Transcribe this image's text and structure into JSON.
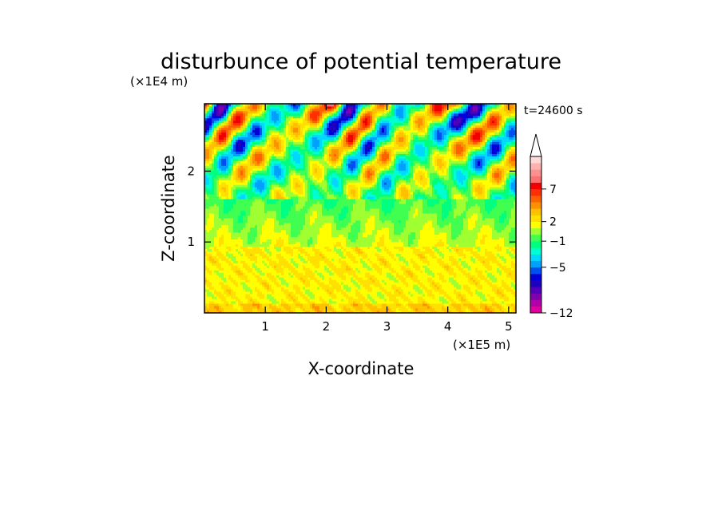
{
  "chart_data": {
    "type": "heatmap",
    "title": "disturbunce of potential temperature",
    "time_label": "t=24600 s",
    "xlabel": "X-coordinate",
    "ylabel": "Z-coordinate",
    "x_scale_label": "(×1E5 m)",
    "y_scale_label": "(×1E4 m)",
    "xlim": [
      0,
      5.12
    ],
    "ylim": [
      0,
      2.95
    ],
    "xticks": [
      1,
      2,
      3,
      4,
      5
    ],
    "yticks": [
      1,
      2
    ],
    "colorbar": {
      "levels": [
        -12,
        -11,
        -10,
        -9,
        -8,
        -7,
        -6,
        -5,
        -4,
        -3,
        -2,
        -1,
        0,
        1,
        2,
        3,
        4,
        5,
        6,
        7,
        8,
        9,
        10,
        11
      ],
      "labeled_ticks": [
        {
          "level": -12,
          "text": "−12"
        },
        {
          "level": -5,
          "text": "−5"
        },
        {
          "level": -1,
          "text": "−1"
        },
        {
          "level": 2,
          "text": "2"
        },
        {
          "level": 7,
          "text": "7"
        }
      ],
      "extend": "max",
      "colors": [
        "#e000a0",
        "#b000a8",
        "#8000b0",
        "#5000b8",
        "#2000c0",
        "#0000d8",
        "#0050f0",
        "#00a0ff",
        "#00d8ff",
        "#00ffd0",
        "#00ff80",
        "#40ff50",
        "#a0ff30",
        "#ffff00",
        "#ffe000",
        "#ffc000",
        "#ff9000",
        "#ff6000",
        "#ff3000",
        "#f00000",
        "#ff7070",
        "#ff9090",
        "#ffb0b0",
        "#ffd8d8"
      ]
    },
    "field_bands": [
      {
        "z_range": [
          0,
          1.0
        ],
        "typical_value": 1.5
      },
      {
        "z_range": [
          1.0,
          1.6
        ],
        "typical_value": 0
      },
      {
        "z_range": [
          1.6,
          2.95
        ],
        "typical_value": "alternating -5 to 7"
      }
    ]
  }
}
